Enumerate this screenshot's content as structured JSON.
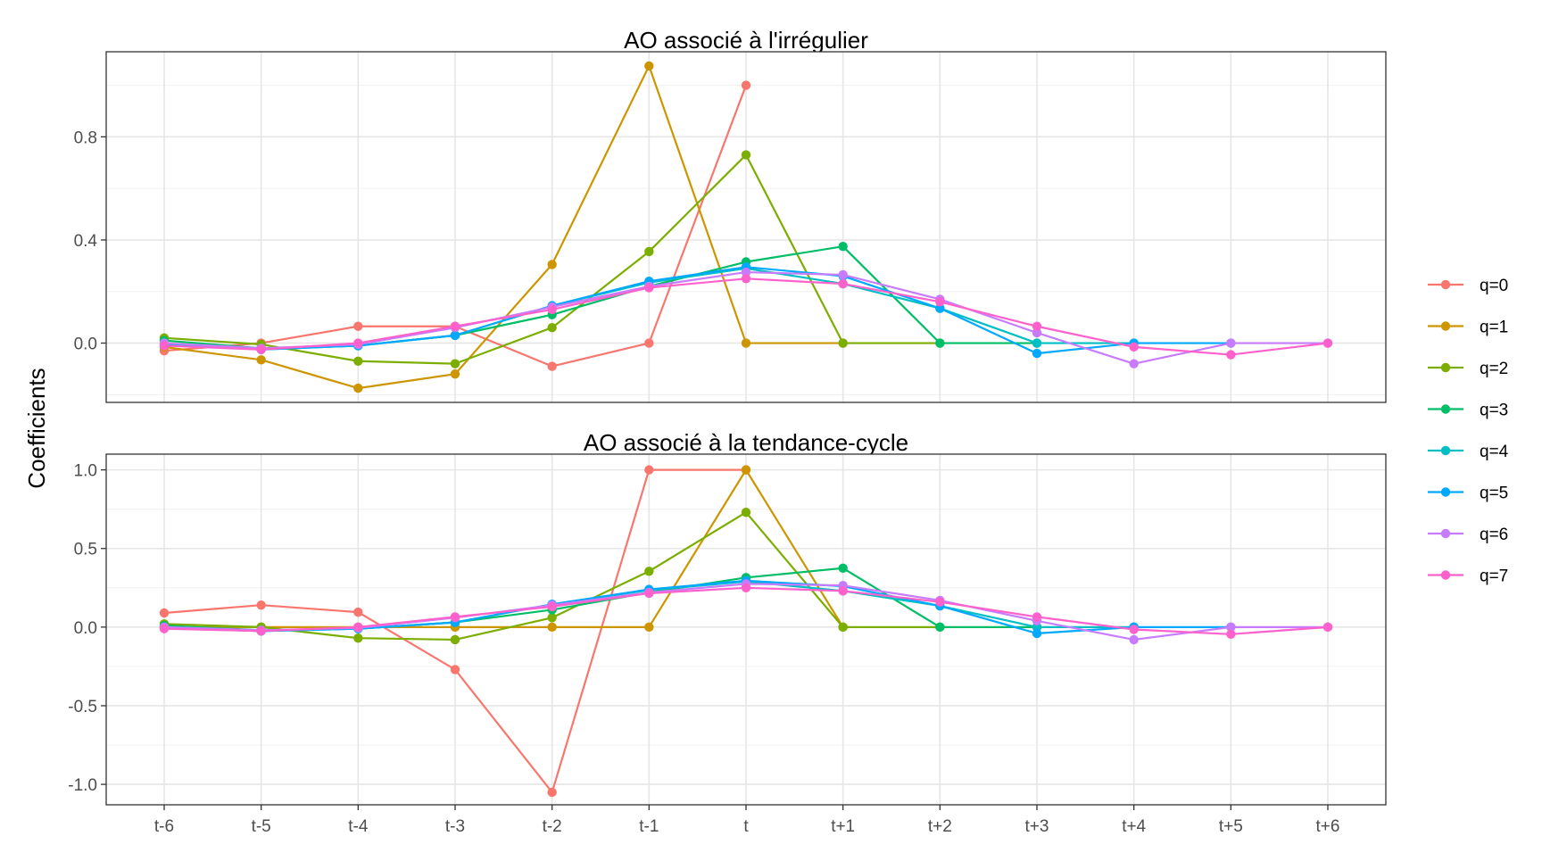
{
  "chart_data": {
    "type": "line",
    "ylabel": "Coefficients",
    "categories": [
      "t-6",
      "t-5",
      "t-4",
      "t-3",
      "t-2",
      "t-1",
      "t",
      "t+1",
      "t+2",
      "t+3",
      "t+4",
      "t+5",
      "t+6"
    ],
    "legend": {
      "placement": "right"
    },
    "grid": true,
    "series_meta": [
      {
        "name": "q=0",
        "color": "#F8766D"
      },
      {
        "name": "q=1",
        "color": "#CD9600"
      },
      {
        "name": "q=2",
        "color": "#7CAE00"
      },
      {
        "name": "q=3",
        "color": "#00BE67"
      },
      {
        "name": "q=4",
        "color": "#00BFC4"
      },
      {
        "name": "q=5",
        "color": "#00A9FF"
      },
      {
        "name": "q=6",
        "color": "#C77CFF"
      },
      {
        "name": "q=7",
        "color": "#FF61CC"
      }
    ],
    "panels": [
      {
        "title": "AO associé à l'irrégulier",
        "ylim": [
          -0.23,
          1.13
        ],
        "yticks": [
          0.0,
          0.4,
          0.8
        ],
        "ytick_labels": [
          "0.0",
          "0.4",
          "0.8"
        ],
        "series": [
          {
            "name": "q=0",
            "values": [
              -0.03,
              0.0,
              0.065,
              0.065,
              -0.09,
              0.0,
              1.0,
              null,
              null,
              null,
              null,
              null,
              null
            ]
          },
          {
            "name": "q=1",
            "values": [
              -0.015,
              -0.065,
              -0.175,
              -0.12,
              0.305,
              1.075,
              0.0,
              0.0,
              null,
              null,
              null,
              null,
              null
            ]
          },
          {
            "name": "q=2",
            "values": [
              0.02,
              -0.005,
              -0.07,
              -0.08,
              0.06,
              0.355,
              0.73,
              0.0,
              0.0,
              null,
              null,
              null,
              null
            ]
          },
          {
            "name": "q=3",
            "values": [
              0.01,
              -0.02,
              -0.01,
              0.03,
              0.11,
              0.22,
              0.315,
              0.375,
              0.0,
              0.0,
              null,
              null,
              null
            ]
          },
          {
            "name": "q=4",
            "values": [
              -0.005,
              -0.025,
              -0.01,
              0.03,
              0.145,
              0.235,
              0.29,
              0.23,
              0.135,
              0.0,
              0.0,
              null,
              null
            ]
          },
          {
            "name": "q=5",
            "values": [
              -0.005,
              -0.025,
              -0.01,
              0.03,
              0.145,
              0.24,
              0.295,
              0.26,
              0.135,
              -0.04,
              0.0,
              0.0,
              null
            ]
          },
          {
            "name": "q=6",
            "values": [
              0.0,
              -0.02,
              -0.005,
              0.06,
              0.14,
              0.22,
              0.275,
              0.265,
              0.17,
              0.04,
              -0.08,
              0.0,
              0.0
            ]
          },
          {
            "name": "q=7",
            "values": [
              -0.01,
              -0.025,
              0.0,
              0.065,
              0.13,
              0.215,
              0.25,
              0.23,
              0.16,
              0.065,
              -0.015,
              -0.045,
              0.0
            ]
          }
        ]
      },
      {
        "title": "AO associé à la tendance-cycle",
        "ylim": [
          -1.13,
          1.1
        ],
        "yticks": [
          -1.0,
          -0.5,
          0.0,
          0.5,
          1.0
        ],
        "ytick_labels": [
          "-1.0",
          "-0.5",
          "0.0",
          "0.5",
          "1.0"
        ],
        "series": [
          {
            "name": "q=0",
            "values": [
              0.09,
              0.14,
              0.095,
              -0.27,
              -1.05,
              1.0,
              1.0,
              null,
              null,
              null,
              null,
              null,
              null
            ]
          },
          {
            "name": "q=1",
            "values": [
              0.0,
              0.0,
              0.0,
              0.0,
              0.0,
              0.0,
              1.0,
              0.0,
              null,
              null,
              null,
              null,
              null
            ]
          },
          {
            "name": "q=2",
            "values": [
              0.02,
              0.0,
              -0.07,
              -0.08,
              0.06,
              0.355,
              0.73,
              0.0,
              0.0,
              null,
              null,
              null,
              null
            ]
          },
          {
            "name": "q=3",
            "values": [
              0.01,
              -0.02,
              -0.01,
              0.03,
              0.11,
              0.22,
              0.315,
              0.375,
              0.0,
              0.0,
              null,
              null,
              null
            ]
          },
          {
            "name": "q=4",
            "values": [
              -0.005,
              -0.025,
              -0.01,
              0.03,
              0.145,
              0.235,
              0.29,
              0.23,
              0.135,
              0.0,
              0.0,
              null,
              null
            ]
          },
          {
            "name": "q=5",
            "values": [
              -0.005,
              -0.025,
              -0.01,
              0.03,
              0.145,
              0.24,
              0.295,
              0.26,
              0.135,
              -0.04,
              0.0,
              0.0,
              null
            ]
          },
          {
            "name": "q=6",
            "values": [
              0.0,
              -0.02,
              -0.005,
              0.06,
              0.14,
              0.22,
              0.275,
              0.265,
              0.17,
              0.04,
              -0.08,
              0.0,
              0.0
            ]
          },
          {
            "name": "q=7",
            "values": [
              -0.01,
              -0.025,
              0.0,
              0.065,
              0.13,
              0.215,
              0.25,
              0.23,
              0.16,
              0.065,
              -0.015,
              -0.045,
              0.0
            ]
          }
        ]
      }
    ]
  }
}
